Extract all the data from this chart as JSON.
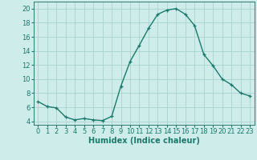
{
  "x": [
    0,
    1,
    2,
    3,
    4,
    5,
    6,
    7,
    8,
    9,
    10,
    11,
    12,
    13,
    14,
    15,
    16,
    17,
    18,
    19,
    20,
    21,
    22,
    23
  ],
  "y": [
    6.8,
    6.1,
    5.9,
    4.6,
    4.2,
    4.4,
    4.2,
    4.1,
    4.7,
    9.0,
    12.5,
    14.8,
    17.2,
    19.2,
    19.8,
    20.0,
    19.2,
    17.6,
    13.5,
    11.9,
    10.0,
    9.2,
    8.0,
    7.6
  ],
  "line_color": "#1a7a6e",
  "marker": "+",
  "marker_size": 3,
  "background_color": "#ceecea",
  "grid_color": "#a8d4d0",
  "xlabel": "Humidex (Indice chaleur)",
  "xlim": [
    -0.5,
    23.5
  ],
  "ylim": [
    3.5,
    21.0
  ],
  "yticks": [
    4,
    6,
    8,
    10,
    12,
    14,
    16,
    18,
    20
  ],
  "xticks": [
    0,
    1,
    2,
    3,
    4,
    5,
    6,
    7,
    8,
    9,
    10,
    11,
    12,
    13,
    14,
    15,
    16,
    17,
    18,
    19,
    20,
    21,
    22,
    23
  ],
  "xtick_labels": [
    "0",
    "1",
    "2",
    "3",
    "4",
    "5",
    "6",
    "7",
    "8",
    "9",
    "10",
    "11",
    "12",
    "13",
    "14",
    "15",
    "16",
    "17",
    "18",
    "19",
    "20",
    "21",
    "22",
    "23"
  ],
  "axis_color": "#2d7a72",
  "tick_color": "#1a7a6e",
  "font_size_xlabel": 7,
  "font_size_ticks": 6,
  "line_width": 1.0,
  "marker_edge_width": 0.9
}
